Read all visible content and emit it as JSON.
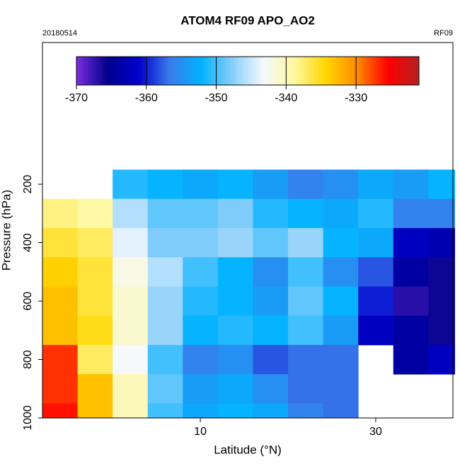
{
  "chart_data": {
    "type": "heatmap",
    "title": "ATOM4 RF09 APO_AO2",
    "date_label": "20180514",
    "flight_label": "RF09",
    "x_label": "Latitude (°N)",
    "y_label": "Pressure (hPa)",
    "xlim": [
      -8,
      38.8
    ],
    "xticks": [
      10,
      30
    ],
    "ylim": [
      -285,
      1000
    ],
    "yticks": [
      200,
      400,
      600,
      800,
      1000
    ],
    "x_edges": [
      -8,
      -4,
      0,
      4,
      8,
      12,
      16,
      20,
      24,
      28,
      32,
      36,
      39
    ],
    "y_edges": [
      150,
      250,
      350,
      450,
      550,
      650,
      750,
      850,
      950,
      1000
    ],
    "values": [
      [
        null,
        null,
        -351,
        -352,
        -353,
        -352,
        -354,
        -356,
        -355,
        -353,
        -354,
        -352
      ],
      [
        -338,
        -339,
        -346,
        -349,
        -349,
        -348,
        -351,
        -352,
        -353,
        -351,
        -356,
        -356
      ],
      [
        -336,
        -337,
        -344,
        -348,
        -348,
        -347,
        -349,
        -347,
        -352,
        -353,
        -362,
        -363
      ],
      [
        -334,
        -336,
        -342,
        -346,
        -350,
        -352,
        -355,
        -350,
        -355,
        -358,
        -364,
        -366
      ],
      [
        -333,
        -336,
        -341,
        -347,
        -351,
        -352,
        -354,
        -349,
        -352,
        -360,
        -367,
        -366
      ],
      [
        -333,
        -335,
        -341,
        -347,
        -352,
        -351,
        -352,
        -350,
        -354,
        -362,
        -364,
        -366
      ],
      [
        -327,
        -337,
        -343,
        -350,
        -356,
        -355,
        -358,
        -357,
        -357,
        null,
        -364,
        -362
      ],
      [
        -327,
        -333,
        -340,
        -349,
        -354,
        -353,
        -355,
        -357,
        -357,
        null,
        null,
        null
      ],
      [
        -326,
        -333,
        -340,
        -350,
        -353,
        -352,
        -353,
        -356,
        -357,
        null,
        null,
        null
      ]
    ],
    "clim": [
      -370,
      -321
    ],
    "cticks": [
      -370,
      -360,
      -350,
      -340,
      -330
    ],
    "colormap": [
      "#7b2ee0",
      "#00008b",
      "#0000cd",
      "#3a7bea",
      "#00b2ff",
      "#87cefa",
      "#f5f9ff",
      "#fff8a0",
      "#ffd700",
      "#ff8c00",
      "#ff0000",
      "#b22222"
    ]
  }
}
